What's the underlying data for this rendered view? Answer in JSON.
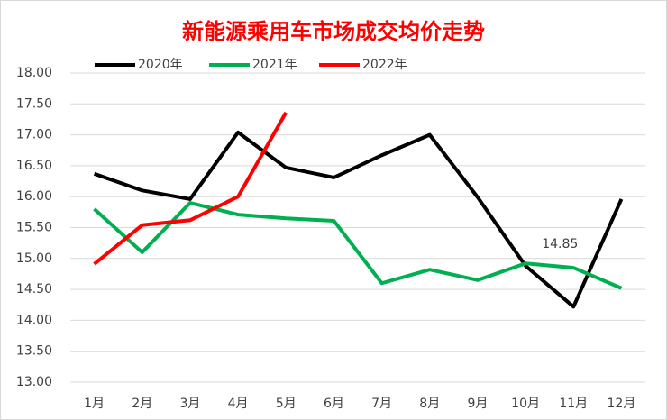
{
  "chart_data": {
    "type": "line",
    "title": "新能源乘用车市场成交均价走势",
    "categories": [
      "1月",
      "2月",
      "3月",
      "4月",
      "5月",
      "6月",
      "7月",
      "8月",
      "9月",
      "10月",
      "11月",
      "12月"
    ],
    "series": [
      {
        "name": "2020年",
        "color": "#000000",
        "values": [
          16.37,
          16.1,
          15.96,
          17.04,
          16.47,
          16.31,
          16.67,
          17.0,
          15.99,
          14.88,
          14.22,
          15.96
        ]
      },
      {
        "name": "2021年",
        "color": "#00b050",
        "values": [
          15.8,
          15.1,
          15.9,
          15.71,
          15.65,
          15.61,
          14.6,
          14.82,
          14.65,
          14.92,
          14.85,
          14.52
        ],
        "value_labels": [
          null,
          null,
          null,
          null,
          null,
          null,
          null,
          null,
          null,
          null,
          "14.85",
          null
        ]
      },
      {
        "name": "2022年",
        "color": "#ff0000",
        "values": [
          14.91,
          15.54,
          15.62,
          16.0,
          17.36,
          null,
          null,
          null,
          null,
          null,
          null,
          null
        ]
      }
    ],
    "ylim": [
      13,
      18
    ],
    "yticks": [
      {
        "value": 13,
        "label": "13.00"
      },
      {
        "value": 13.5,
        "label": "13.50"
      },
      {
        "value": 14,
        "label": "14.00"
      },
      {
        "value": 14.5,
        "label": "14.50"
      },
      {
        "value": 15,
        "label": "15.00"
      },
      {
        "value": 15.5,
        "label": "15.50"
      },
      {
        "value": 16,
        "label": "16.00"
      },
      {
        "value": 16.5,
        "label": "16.50"
      },
      {
        "value": 17,
        "label": "17.00"
      },
      {
        "value": 17.5,
        "label": "17.50"
      },
      {
        "value": 18,
        "label": "18.00"
      }
    ],
    "grid": true,
    "legend": "top"
  }
}
